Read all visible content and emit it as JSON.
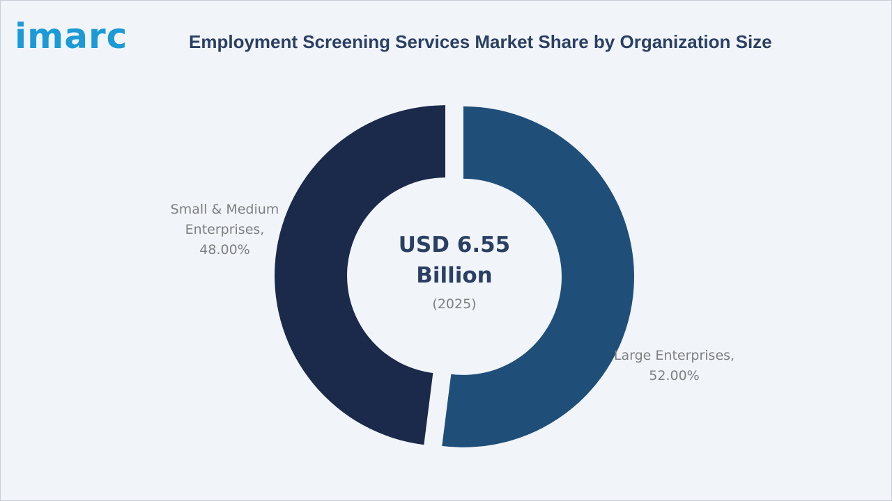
{
  "brand": {
    "logo_text": "imarc"
  },
  "chart_data": {
    "type": "pie",
    "title": "Employment Screening Services Market Share by Organization Size",
    "center_value": "USD 6.55 Billion",
    "center_year": "(2025)",
    "slices": [
      {
        "label": "Large Enterprises,",
        "value_text": "52.00%",
        "value": 52.0,
        "color": "#1f4e79"
      },
      {
        "label": "Small & Medium Enterprises,",
        "value_text": "48.00%",
        "value": 48.0,
        "color": "#1b2a4a"
      }
    ]
  }
}
